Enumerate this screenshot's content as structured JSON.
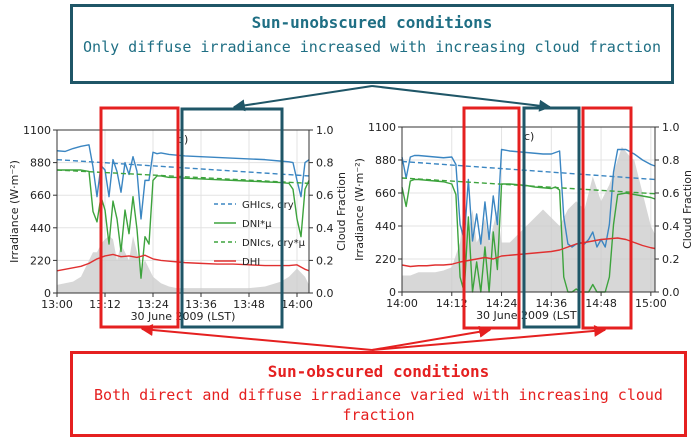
{
  "callouts": {
    "top": {
      "title": "Sun-unobscured conditions",
      "body": "Only diffuse irradiance increased with increasing cloud fraction"
    },
    "bottom": {
      "title": "Sun-obscured conditions",
      "body": "Both direct and diffuse irradiance varied with increasing cloud fraction"
    }
  },
  "colors": {
    "top_callout": "#1f5667",
    "bottom_callout": "#e52020",
    "ghi": "#3b86c2",
    "dni": "#3da33d",
    "dhi": "#e03030",
    "cloud": "#c9c9c9"
  },
  "chart_data": [
    {
      "type": "line",
      "panel_label": "b)",
      "xlabel": "30 June 2009 (LST)",
      "ylabel": "Irradiance (W·m⁻²)",
      "y2label": "Cloud Fraction",
      "xlim": [
        780,
        843
      ],
      "ylim": [
        0,
        1100
      ],
      "y2lim": [
        0,
        1.0
      ],
      "x_ticks": [
        780,
        792,
        804,
        816,
        828,
        840
      ],
      "x_tick_labels": [
        "13:00",
        "13:12",
        "13:24",
        "13:36",
        "13:48",
        "14:00"
      ],
      "y_ticks": [
        0,
        220,
        440,
        660,
        880,
        1100
      ],
      "y_tick_labels": [
        "0",
        "220",
        "440",
        "660",
        "880",
        "1100"
      ],
      "y2_ticks": [
        0,
        0.2,
        0.4,
        0.6,
        0.8,
        1.0
      ],
      "y2_tick_labels": [
        "0.0",
        "0.2",
        "0.4",
        "0.6",
        "0.8",
        "1.0"
      ],
      "grid": true,
      "legend_position": "center-right",
      "legend": [
        "GHIcs, dry",
        "DNI*μ",
        "DNIcs, dry*μ",
        "DHI"
      ],
      "series": [
        {
          "key": "cloud",
          "kind": "area",
          "x": [
            780,
            782,
            784,
            786,
            788,
            789,
            790,
            791,
            792,
            793,
            794,
            795,
            796,
            797,
            798,
            799,
            800,
            801,
            802,
            803,
            804,
            805,
            806,
            807,
            808,
            810,
            812,
            816,
            820,
            824,
            828,
            832,
            836,
            838,
            840,
            842,
            843
          ],
          "y": [
            0.05,
            0.06,
            0.07,
            0.1,
            0.2,
            0.25,
            0.25,
            0.3,
            0.33,
            0.35,
            0.33,
            0.2,
            0.3,
            0.25,
            0.2,
            0.35,
            0.25,
            0.15,
            0.2,
            0.15,
            0.1,
            0.08,
            0.06,
            0.05,
            0.04,
            0.03,
            0.03,
            0.03,
            0.03,
            0.03,
            0.03,
            0.04,
            0.07,
            0.1,
            0.15,
            0.1,
            0.05
          ]
        },
        {
          "key": "ghi",
          "kind": "line",
          "x": [
            780,
            782,
            784,
            786,
            788,
            789,
            790,
            791,
            792,
            793,
            794,
            795,
            796,
            797,
            798,
            799,
            800,
            801,
            802,
            803,
            804,
            805,
            806,
            807,
            808,
            810,
            812,
            816,
            820,
            824,
            828,
            832,
            836,
            838,
            839,
            840,
            841,
            842,
            843
          ],
          "y": [
            960,
            955,
            975,
            990,
            1000,
            850,
            650,
            860,
            830,
            650,
            900,
            820,
            680,
            880,
            800,
            920,
            820,
            500,
            760,
            760,
            950,
            940,
            945,
            940,
            935,
            930,
            925,
            920,
            915,
            910,
            905,
            900,
            890,
            885,
            880,
            760,
            650,
            880,
            900
          ]
        },
        {
          "key": "ghi_clear",
          "kind": "dashed",
          "x": [
            780,
            843
          ],
          "y": [
            900,
            790
          ]
        },
        {
          "key": "dni",
          "kind": "line",
          "x": [
            780,
            782,
            784,
            786,
            788,
            789,
            790,
            791,
            792,
            793,
            794,
            795,
            796,
            797,
            798,
            799,
            800,
            801,
            802,
            803,
            804,
            805,
            806,
            807,
            808,
            810,
            812,
            816,
            820,
            824,
            828,
            832,
            836,
            838,
            839,
            840,
            841,
            842,
            843
          ],
          "y": [
            830,
            830,
            830,
            830,
            820,
            550,
            480,
            650,
            560,
            330,
            620,
            500,
            280,
            560,
            400,
            650,
            430,
            100,
            380,
            330,
            760,
            790,
            790,
            785,
            780,
            780,
            775,
            770,
            765,
            760,
            755,
            750,
            745,
            740,
            700,
            500,
            380,
            700,
            760
          ]
        },
        {
          "key": "dni_clear",
          "kind": "dashed",
          "x": [
            780,
            843
          ],
          "y": [
            830,
            740
          ]
        },
        {
          "key": "dhi",
          "kind": "line",
          "x": [
            780,
            782,
            784,
            786,
            788,
            790,
            792,
            794,
            796,
            798,
            800,
            802,
            804,
            806,
            808,
            810,
            812,
            816,
            820,
            824,
            828,
            832,
            836,
            838,
            840,
            842,
            843
          ],
          "y": [
            150,
            160,
            170,
            180,
            200,
            230,
            250,
            260,
            245,
            250,
            240,
            255,
            230,
            220,
            215,
            210,
            205,
            200,
            195,
            195,
            190,
            185,
            185,
            185,
            190,
            160,
            150
          ]
        }
      ]
    },
    {
      "type": "line",
      "panel_label": "c)",
      "xlabel": "30 June 2009 (LST)",
      "ylabel": "Irradiance (W·m⁻²)",
      "y2label": "Cloud Fraction",
      "xlim": [
        840,
        901
      ],
      "ylim": [
        0,
        1100
      ],
      "y2lim": [
        0,
        1.0
      ],
      "x_ticks": [
        840,
        852,
        864,
        876,
        888,
        900
      ],
      "x_tick_labels": [
        "14:00",
        "14:12",
        "14:24",
        "14:36",
        "14:48",
        "15:00"
      ],
      "y_ticks": [
        0,
        220,
        440,
        660,
        880,
        1100
      ],
      "y_tick_labels": [
        "0",
        "220",
        "440",
        "660",
        "880",
        "1100"
      ],
      "y2_ticks": [
        0,
        0.2,
        0.4,
        0.6,
        0.8,
        1.0
      ],
      "y2_tick_labels": [
        "0.0",
        "0.2",
        "0.4",
        "0.6",
        "0.8",
        "1.0"
      ],
      "grid": true,
      "series": [
        {
          "key": "cloud",
          "kind": "area",
          "x": [
            840,
            842,
            844,
            846,
            848,
            850,
            852,
            854,
            855,
            856,
            857,
            858,
            859,
            860,
            861,
            862,
            863,
            864,
            866,
            868,
            870,
            872,
            874,
            876,
            878,
            880,
            882,
            884,
            886,
            888,
            890,
            892,
            893,
            894,
            895,
            896,
            898,
            900,
            901
          ],
          "y": [
            0.1,
            0.1,
            0.12,
            0.12,
            0.12,
            0.13,
            0.15,
            0.3,
            0.55,
            0.35,
            0.5,
            0.3,
            0.35,
            0.45,
            0.3,
            0.4,
            0.5,
            0.3,
            0.3,
            0.35,
            0.4,
            0.45,
            0.5,
            0.45,
            0.4,
            0.5,
            0.55,
            0.5,
            0.7,
            0.55,
            0.65,
            0.8,
            0.88,
            0.85,
            0.82,
            0.8,
            0.6,
            0.4,
            0.35
          ]
        },
        {
          "key": "ghi",
          "kind": "line",
          "x": [
            840,
            841,
            842,
            843,
            844,
            846,
            848,
            850,
            852,
            853,
            854,
            855,
            856,
            857,
            858,
            859,
            860,
            861,
            862,
            863,
            864,
            866,
            868,
            870,
            872,
            874,
            876,
            877,
            878,
            879,
            880,
            881,
            882,
            883,
            884,
            885,
            886,
            887,
            888,
            889,
            890,
            891,
            892,
            894,
            896,
            898,
            900,
            901
          ],
          "y": [
            900,
            760,
            900,
            910,
            910,
            905,
            900,
            895,
            900,
            850,
            450,
            350,
            750,
            340,
            520,
            320,
            600,
            350,
            640,
            450,
            950,
            940,
            935,
            930,
            925,
            920,
            920,
            930,
            940,
            500,
            320,
            300,
            320,
            330,
            320,
            350,
            400,
            300,
            350,
            300,
            450,
            800,
            950,
            950,
            920,
            880,
            850,
            840
          ]
        },
        {
          "key": "ghi_clear",
          "kind": "dashed",
          "x": [
            840,
            901
          ],
          "y": [
            870,
            750
          ]
        },
        {
          "key": "dni",
          "kind": "line",
          "x": [
            840,
            841,
            842,
            843,
            844,
            846,
            848,
            850,
            852,
            853,
            854,
            855,
            856,
            857,
            858,
            859,
            860,
            861,
            862,
            863,
            864,
            866,
            868,
            870,
            872,
            874,
            876,
            877,
            878,
            879,
            880,
            881,
            882,
            883,
            884,
            885,
            886,
            887,
            888,
            889,
            890,
            891,
            892,
            894,
            896,
            898,
            900,
            901
          ],
          "y": [
            700,
            570,
            740,
            750,
            750,
            745,
            740,
            735,
            720,
            650,
            100,
            0,
            500,
            0,
            200,
            0,
            300,
            0,
            400,
            150,
            720,
            720,
            715,
            710,
            700,
            695,
            690,
            700,
            680,
            100,
            0,
            0,
            20,
            0,
            0,
            0,
            50,
            0,
            0,
            0,
            100,
            450,
            650,
            660,
            650,
            640,
            630,
            620
          ]
        },
        {
          "key": "dni_clear",
          "kind": "dashed",
          "x": [
            840,
            901
          ],
          "y": [
            760,
            655
          ]
        },
        {
          "key": "dhi",
          "kind": "line",
          "x": [
            840,
            842,
            844,
            846,
            848,
            850,
            852,
            854,
            856,
            858,
            860,
            862,
            864,
            866,
            868,
            870,
            872,
            874,
            876,
            878,
            880,
            882,
            884,
            886,
            888,
            890,
            892,
            894,
            896,
            898,
            900,
            901
          ],
          "y": [
            180,
            170,
            175,
            175,
            180,
            180,
            185,
            200,
            210,
            220,
            230,
            220,
            240,
            245,
            250,
            255,
            260,
            265,
            270,
            280,
            300,
            320,
            330,
            340,
            350,
            355,
            360,
            350,
            330,
            310,
            295,
            290
          ]
        }
      ]
    }
  ]
}
